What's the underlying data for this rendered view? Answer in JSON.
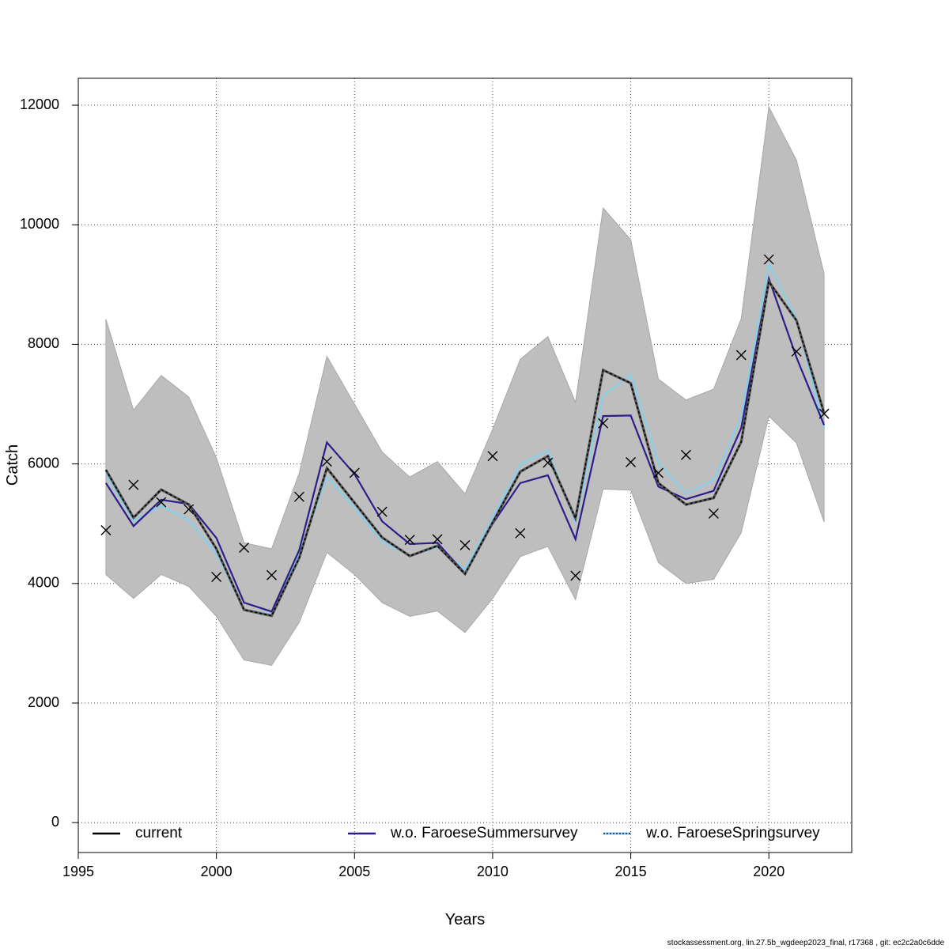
{
  "chart_data": {
    "type": "line",
    "xlabel": "Years",
    "ylabel": "Catch",
    "xlim": [
      1995,
      2023
    ],
    "ylim": [
      -500,
      12450
    ],
    "x_ticks": [
      1995,
      2000,
      2005,
      2010,
      2015,
      2020
    ],
    "y_ticks": [
      0,
      2000,
      4000,
      6000,
      8000,
      10000,
      12000
    ],
    "grid": true,
    "legend_placement": "bottom",
    "x": [
      1996,
      1997,
      1998,
      1999,
      2000,
      2001,
      2002,
      2003,
      2004,
      2005,
      2006,
      2007,
      2008,
      2009,
      2010,
      2011,
      2012,
      2013,
      2014,
      2015,
      2016,
      2017,
      2018,
      2019,
      2020,
      2021,
      2022
    ],
    "confidence_band": {
      "lower": [
        4150,
        3750,
        4150,
        3950,
        3450,
        2720,
        2630,
        3350,
        4520,
        4150,
        3680,
        3450,
        3540,
        3180,
        3750,
        4450,
        4620,
        3730,
        5580,
        5560,
        4350,
        4000,
        4070,
        4850,
        6800,
        6350,
        5030
      ],
      "upper": [
        8420,
        6900,
        7480,
        7120,
        6100,
        4680,
        4580,
        5850,
        7800,
        7000,
        6200,
        5780,
        6040,
        5500,
        6580,
        7750,
        8130,
        7030,
        10280,
        9750,
        7420,
        7070,
        7250,
        8430,
        11970,
        11080,
        9180
      ],
      "color": "#bebebe"
    },
    "series": [
      {
        "name": "current",
        "color": "#000000",
        "values": [
          5900,
          5100,
          5570,
          5320,
          4580,
          3560,
          3460,
          4430,
          5930,
          5350,
          4770,
          4460,
          4630,
          4160,
          5020,
          5870,
          6130,
          5090,
          7570,
          7350,
          5680,
          5320,
          5430,
          6370,
          9050,
          8400,
          6850
        ]
      },
      {
        "name": "w.o. FaroeseSummersurvey",
        "color": "#2c1e8a",
        "values": [
          5680,
          4960,
          5400,
          5330,
          4760,
          3680,
          3530,
          4560,
          6360,
          5830,
          5040,
          4660,
          4680,
          4170,
          5000,
          5680,
          5810,
          4740,
          6800,
          6810,
          5620,
          5410,
          5550,
          6600,
          9100,
          7780,
          6650
        ]
      },
      {
        "name": "w.o. FaroeseSpringsurvey",
        "color": "#87ceeb",
        "values": [
          5830,
          5050,
          5300,
          5050,
          4500,
          3560,
          3490,
          4500,
          5780,
          5270,
          4700,
          4470,
          4600,
          4230,
          5100,
          5990,
          6220,
          5030,
          7140,
          7490,
          6010,
          5500,
          5730,
          6800,
          9340,
          8430,
          6600
        ]
      }
    ],
    "observations": {
      "marker": "cross",
      "values": [
        4890,
        5650,
        5360,
        5240,
        4110,
        4600,
        4140,
        5450,
        6040,
        5850,
        5200,
        4730,
        4740,
        4640,
        6130,
        4840,
        6020,
        4130,
        6680,
        6030,
        5850,
        6150,
        5170,
        7820,
        9420,
        7880,
        6840
      ]
    }
  },
  "footer_text": "stockassessment.org, lin.27.5b_wgdeep2023_final, r17368 , git: ec2c2a0c6dde"
}
